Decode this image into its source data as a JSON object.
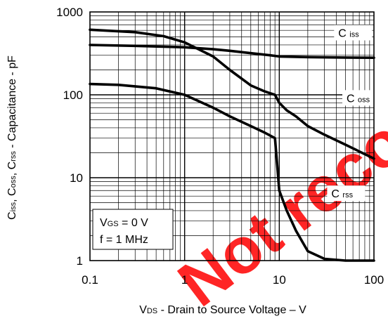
{
  "chart_data": {
    "type": "line",
    "x_scale": "log",
    "y_scale": "log",
    "xlim": [
      0.1,
      100
    ],
    "ylim": [
      1,
      1000
    ],
    "grid": true,
    "x_ticks": [
      "0.1",
      "1",
      "10",
      "100"
    ],
    "y_ticks": [
      "1000",
      "100",
      "10",
      "1"
    ],
    "xlabel": {
      "v": "V",
      "sub": "DS",
      "rest": " - Drain to Source Voltage – V"
    },
    "ylabel": [
      {
        "t": "C",
        "s": "iss"
      },
      {
        "t": ", C",
        "s": "oss"
      },
      {
        "t": ", C",
        "s": "rss"
      },
      {
        "t": " - Capacitance - pF",
        "s": ""
      }
    ],
    "series": [
      {
        "name": "C iss",
        "label": {
          "main": "C",
          "sub": "iss"
        },
        "x": [
          0.1,
          0.3,
          1,
          2,
          3,
          5,
          8,
          10,
          20,
          50,
          100
        ],
        "y": [
          400,
          390,
          375,
          355,
          340,
          318,
          300,
          290,
          285,
          282,
          280
        ]
      },
      {
        "name": "C oss",
        "label": {
          "main": "C",
          "sub": "oss"
        },
        "x": [
          0.1,
          0.3,
          0.6,
          1,
          2,
          3,
          5,
          7,
          9,
          10,
          12,
          15,
          20,
          30,
          50,
          100
        ],
        "y": [
          610,
          570,
          510,
          430,
          290,
          200,
          130,
          110,
          100,
          80,
          65,
          55,
          42,
          33,
          25,
          17
        ]
      },
      {
        "name": "C rss",
        "label": {
          "main": "C",
          "sub": "rss"
        },
        "x": [
          0.1,
          0.2,
          0.5,
          1,
          2,
          3,
          5,
          7,
          9,
          10,
          12,
          15,
          20,
          30,
          50,
          100
        ],
        "y": [
          135,
          132,
          120,
          100,
          70,
          55,
          42,
          35,
          30,
          7,
          4,
          2.3,
          1.3,
          1.05,
          1.0,
          1.0
        ]
      }
    ],
    "annotation": {
      "line1": {
        "v": "V",
        "sub": "GS",
        "rest": " = 0 V"
      },
      "line2": "f = 1 MHz"
    },
    "watermark": "Not recommended",
    "colors": {
      "lines": "#000000",
      "watermark": "#ff0000"
    }
  }
}
